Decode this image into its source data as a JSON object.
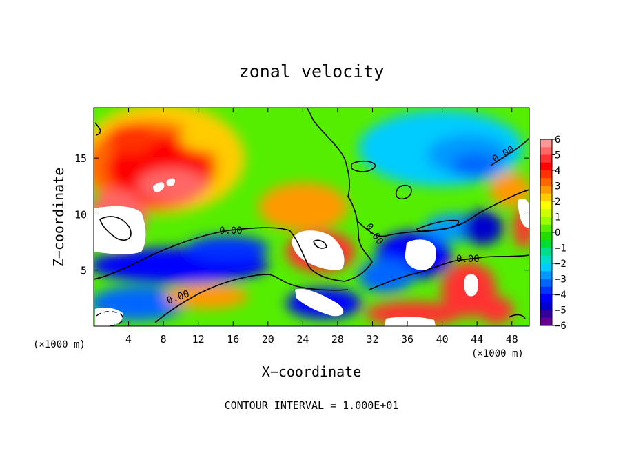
{
  "chart_data": {
    "type": "heatmap",
    "title": "zonal velocity",
    "xlabel": "X−coordinate",
    "ylabel": "Z−coordinate",
    "x_unit_left": "(×1000 m)",
    "x_unit_right": "(×1000 m)",
    "xlim": [
      0,
      50
    ],
    "ylim": [
      0,
      19.5
    ],
    "xticks": [
      4,
      8,
      12,
      16,
      20,
      24,
      28,
      32,
      36,
      40,
      44,
      48
    ],
    "yticks": [
      5,
      10,
      15
    ],
    "colorbar": {
      "ticks": [
        6,
        5,
        4,
        3,
        2,
        1,
        0,
        -1,
        -2,
        -3,
        -4,
        -5,
        -6
      ],
      "levels": [
        6,
        5.5,
        5,
        4.5,
        4,
        3.5,
        3,
        2.5,
        2,
        1.5,
        1,
        0.5,
        0,
        -0.5,
        -1,
        -1.5,
        -2,
        -2.5,
        -3,
        -3.5,
        -4,
        -4.5,
        -5,
        -5.5,
        -6
      ],
      "colors": [
        "#ff9999",
        "#ff6666",
        "#ff3333",
        "#ff0000",
        "#ff3300",
        "#ff6600",
        "#ff9900",
        "#ffcc00",
        "#ffff00",
        "#ccff00",
        "#99ff00",
        "#55ee00",
        "#22dd00",
        "#00dd33",
        "#00dd88",
        "#00ddcc",
        "#00ccff",
        "#0099ff",
        "#0066ff",
        "#0033ff",
        "#0000ff",
        "#0000cc",
        "#330099",
        "#660099"
      ]
    },
    "contour_labels": [
      "0.00",
      "0.00",
      "0.00",
      "0.00",
      "0.00"
    ],
    "grid": false,
    "legend": "colorbar-right"
  },
  "footer_text": "CONTOUR INTERVAL = 1.000E+01"
}
